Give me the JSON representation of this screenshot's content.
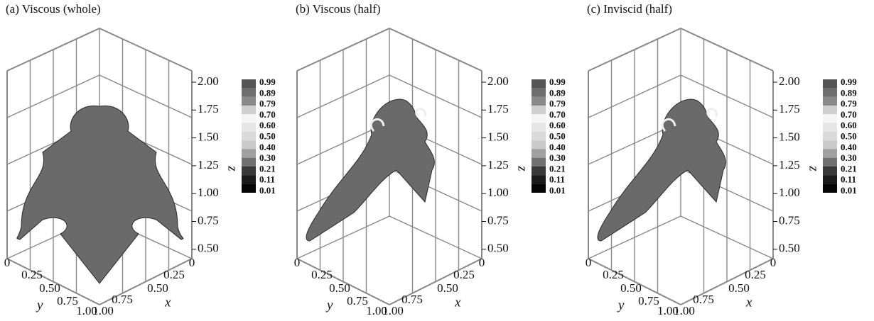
{
  "panels": [
    {
      "title": "(a) Viscous (whole)",
      "z_ticks": [
        "2.00",
        "1.75",
        "1.50",
        "1.25",
        "1.00",
        "0.75",
        "0.50"
      ],
      "z_label": "z",
      "x_ticks": [
        "0",
        "0.25",
        "0.50",
        "0.75",
        "1.00"
      ],
      "x_label": "x",
      "y_ticks": [
        "0",
        "0.25",
        "0.50",
        "0.75",
        "1.00"
      ],
      "y_label": "y",
      "colorbar_labels": [
        "0.99",
        "0.89",
        "0.79",
        "0.70",
        "0.60",
        "0.50",
        "0.40",
        "0.30",
        "0.21",
        "0.11",
        "0.01"
      ]
    },
    {
      "title": "(b) Viscous (half)",
      "z_ticks": [
        "2.00",
        "1.75",
        "1.50",
        "1.25",
        "1.00",
        "0.75",
        "0.50"
      ],
      "z_label": "z",
      "x_ticks": [
        "0",
        "0.25",
        "0.50",
        "0.75",
        "1.00"
      ],
      "x_label": "x",
      "y_ticks": [
        "0",
        "0.25",
        "0.50",
        "0.75",
        "1.00"
      ],
      "y_label": "y",
      "colorbar_labels": [
        "0.99",
        "0.89",
        "0.79",
        "0.70",
        "0.60",
        "0.50",
        "0.40",
        "0.30",
        "0.21",
        "0.11",
        "0.01"
      ]
    },
    {
      "title": "(c) Inviscid (half)",
      "z_ticks": [
        "2.00",
        "1.75",
        "1.50",
        "1.25",
        "1.00",
        "0.75",
        "0.50"
      ],
      "z_label": "z",
      "x_ticks": [
        "0",
        "0.25",
        "0.50",
        "0.75",
        "1.00"
      ],
      "x_label": "x",
      "y_ticks": [
        "0",
        "0.25",
        "0.50",
        "0.75",
        "1.00"
      ],
      "y_label": "y",
      "colorbar_labels": [
        "0.99",
        "0.89",
        "0.79",
        "0.70",
        "0.60",
        "0.50",
        "0.40",
        "0.30",
        "0.21",
        "0.11",
        "0.01"
      ]
    }
  ]
}
